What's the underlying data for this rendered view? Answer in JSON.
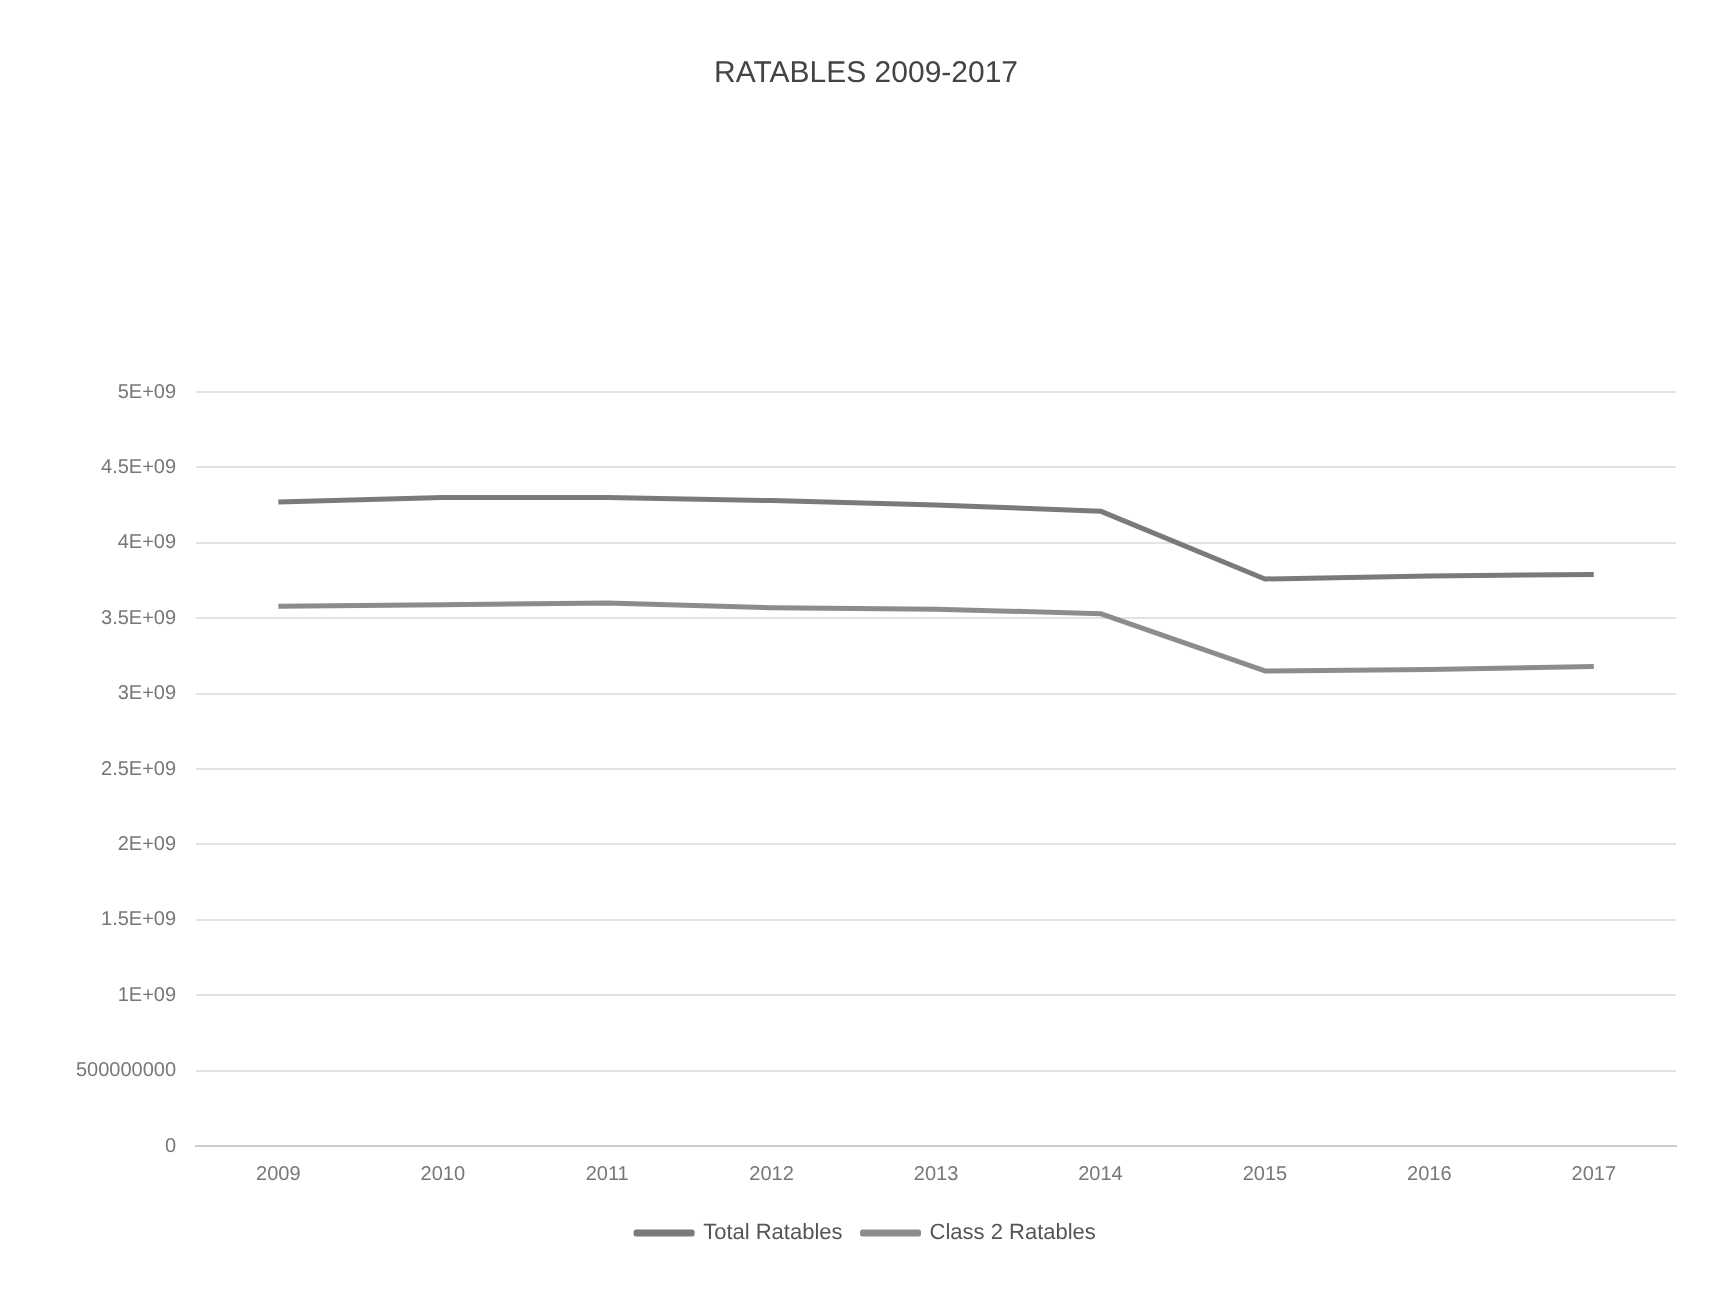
{
  "chart_data": {
    "type": "line",
    "title": "RATABLES 2009-2017",
    "categories": [
      "2009",
      "2010",
      "2011",
      "2012",
      "2013",
      "2014",
      "2015",
      "2016",
      "2017"
    ],
    "series": [
      {
        "name": "Total Ratables",
        "color": "#7a7a7a",
        "values": [
          4270000000,
          4300000000,
          4300000000,
          4280000000,
          4250000000,
          4210000000,
          3760000000,
          3780000000,
          3790000000
        ]
      },
      {
        "name": "Class 2 Ratables",
        "color": "#8c8c8c",
        "values": [
          3580000000,
          3590000000,
          3600000000,
          3570000000,
          3560000000,
          3530000000,
          3150000000,
          3160000000,
          3180000000
        ]
      }
    ],
    "ylim": [
      0,
      5000000000
    ],
    "yticks": [
      {
        "value": 0,
        "label": "0"
      },
      {
        "value": 500000000,
        "label": "500000000"
      },
      {
        "value": 1000000000,
        "label": "1E+09"
      },
      {
        "value": 1500000000,
        "label": "1.5E+09"
      },
      {
        "value": 2000000000,
        "label": "2E+09"
      },
      {
        "value": 2500000000,
        "label": "2.5E+09"
      },
      {
        "value": 3000000000,
        "label": "3E+09"
      },
      {
        "value": 3500000000,
        "label": "3.5E+09"
      },
      {
        "value": 4000000000,
        "label": "4E+09"
      },
      {
        "value": 4500000000,
        "label": "4.5E+09"
      },
      {
        "value": 5000000000,
        "label": "5E+09"
      }
    ],
    "grid": "y",
    "legend": "bottom",
    "marker": "none",
    "line_style": "solid"
  }
}
